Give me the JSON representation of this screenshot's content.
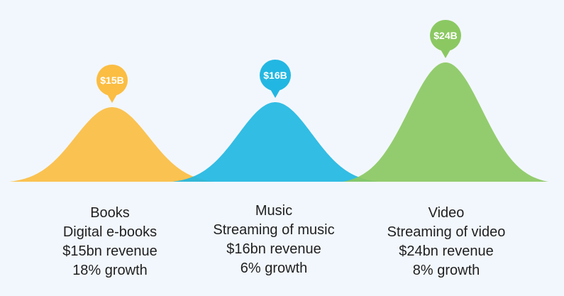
{
  "chart_data": {
    "type": "area",
    "title": "",
    "xlabel": "",
    "ylabel": "",
    "categories": [
      "Books",
      "Music",
      "Video"
    ],
    "values": [
      15,
      16,
      24
    ],
    "series": [
      {
        "name": "Books",
        "value": 15,
        "badge": "$15B",
        "color": "#fbbd42",
        "lines": [
          "Books",
          "Digital e-books",
          "$15bn revenue",
          "18% growth"
        ]
      },
      {
        "name": "Music",
        "value": 16,
        "badge": "$16B",
        "color": "#22b7e2",
        "lines": [
          "Music",
          "Streaming of music",
          "$16bn revenue",
          "6% growth"
        ]
      },
      {
        "name": "Video",
        "value": 24,
        "badge": "$24B",
        "color": "#8bc862",
        "lines": [
          "Video",
          "Streaming of video",
          "$24bn revenue",
          "8% growth"
        ]
      }
    ],
    "ylim": [
      0,
      24
    ],
    "grid": false,
    "legend": "none"
  }
}
